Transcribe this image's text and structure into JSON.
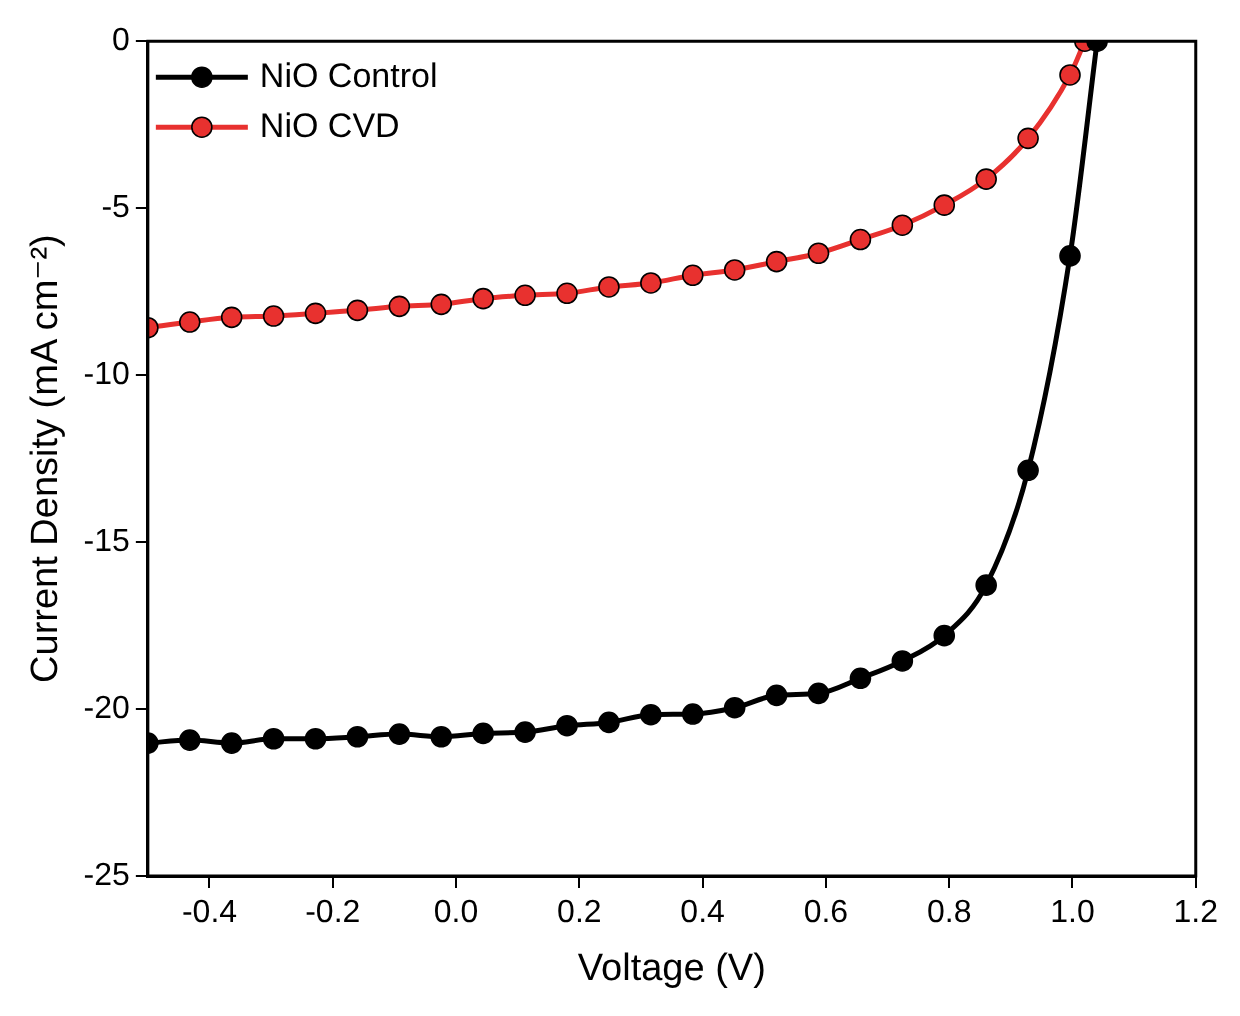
{
  "chart_data": {
    "type": "line",
    "xlabel": "Voltage (V)",
    "ylabel": "Current Density (mA cm⁻²)",
    "xlim": [
      -0.5,
      1.2
    ],
    "xticks": [
      -0.4,
      -0.2,
      {
        "value": 0,
        "label": "0.0"
      },
      0.2,
      0.4,
      0.6,
      0.8,
      {
        "value": 1,
        "label": "1.0"
      },
      1.2
    ],
    "ylim": [
      -25,
      0
    ],
    "yticks": [
      -25,
      -20,
      -15,
      -10,
      -5,
      0
    ],
    "grid": false,
    "legend": "top left",
    "marker": "circle",
    "line_style": "solid",
    "series": [
      {
        "name": "NiO Control",
        "color": "#000000",
        "x": [
          -0.5,
          -0.432,
          -0.364,
          -0.296,
          -0.228,
          -0.16,
          -0.092,
          -0.024,
          0.044,
          0.112,
          0.18,
          0.248,
          0.316,
          0.384,
          0.452,
          0.52,
          0.588,
          0.656,
          0.724,
          0.792,
          0.86,
          0.928,
          0.996,
          1.04
        ],
        "values": [
          -21.02,
          -20.93,
          -21.02,
          -20.89,
          -20.89,
          -20.83,
          -20.75,
          -20.83,
          -20.73,
          -20.69,
          -20.5,
          -20.4,
          -20.17,
          -20.15,
          -19.96,
          -19.59,
          -19.53,
          -19.08,
          -18.56,
          -17.8,
          -16.29,
          -12.85,
          -6.43,
          0
        ]
      },
      {
        "name": "NiO CVD",
        "color": "#e8312f",
        "x": [
          -0.5,
          -0.432,
          -0.364,
          -0.296,
          -0.228,
          -0.16,
          -0.092,
          -0.024,
          0.044,
          0.112,
          0.18,
          0.248,
          0.316,
          0.384,
          0.452,
          0.52,
          0.588,
          0.656,
          0.724,
          0.792,
          0.86,
          0.928,
          0.996,
          1.02
        ],
        "values": [
          -8.58,
          -8.41,
          -8.27,
          -8.23,
          -8.15,
          -8.06,
          -7.94,
          -7.88,
          -7.71,
          -7.61,
          -7.55,
          -7.36,
          -7.24,
          -7.01,
          -6.85,
          -6.6,
          -6.35,
          -5.94,
          -5.51,
          -4.91,
          -4.13,
          -2.91,
          -1.01,
          0
        ]
      }
    ]
  }
}
